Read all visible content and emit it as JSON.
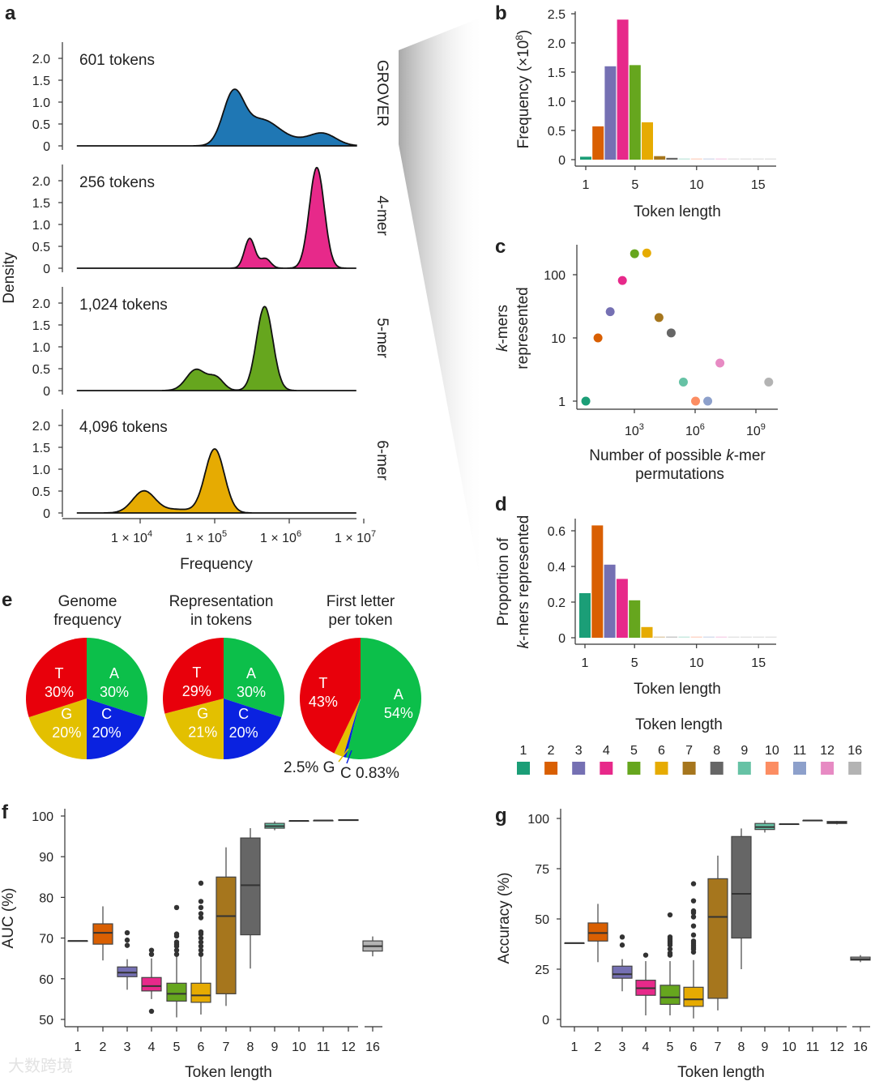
{
  "token_colors": {
    "1": "#1b9e77",
    "2": "#d95f02",
    "3": "#7570b3",
    "4": "#e7298a",
    "5": "#66a61e",
    "6": "#e6ab02",
    "7": "#a6761d",
    "8": "#666666",
    "9": "#66c2a5",
    "10": "#fc8d62",
    "11": "#8da0cb",
    "12": "#e78ac3",
    "16": "#b3b3b3"
  },
  "panel_letters": {
    "a": "a",
    "b": "b",
    "c": "c",
    "d": "d",
    "e": "e",
    "f": "f",
    "g": "g"
  },
  "watermark": "大数跨境",
  "chart_data": [
    {
      "id": "a",
      "type": "area",
      "xlabel": "Frequency",
      "ylabel": "Density",
      "xscale": "log10",
      "xticks": [
        {
          "value": 4,
          "base": "1 × 10",
          "exp": "4"
        },
        {
          "value": 5,
          "base": "1 × 10",
          "exp": "5"
        },
        {
          "value": 6,
          "base": "1 × 10",
          "exp": "6"
        },
        {
          "value": 7,
          "base": "1 × 10",
          "exp": "7"
        }
      ],
      "yticks": [
        "0",
        "0.5",
        "1.0",
        "1.5",
        "2.0"
      ],
      "ylim": [
        0,
        2.0
      ],
      "series": [
        {
          "name": "GROVER",
          "title": "601 tokens",
          "color": "#1f77b4",
          "components": [
            {
              "mu": 5.25,
              "sd": 0.14,
              "h": 1.15
            },
            {
              "mu": 5.62,
              "sd": 0.22,
              "h": 0.55
            },
            {
              "mu": 6.45,
              "sd": 0.18,
              "h": 0.27
            },
            {
              "mu": 6.0,
              "sd": 0.25,
              "h": 0.12
            }
          ]
        },
        {
          "name": "4-mer",
          "title": "256 tokens",
          "color": "#e7298a",
          "components": [
            {
              "mu": 6.37,
              "sd": 0.1,
              "h": 2.3
            },
            {
              "mu": 5.47,
              "sd": 0.07,
              "h": 0.68
            },
            {
              "mu": 5.68,
              "sd": 0.07,
              "h": 0.22
            }
          ]
        },
        {
          "name": "5-mer",
          "title": "1,024 tokens",
          "color": "#66a61e",
          "components": [
            {
              "mu": 5.67,
              "sd": 0.11,
              "h": 1.92
            },
            {
              "mu": 4.75,
              "sd": 0.13,
              "h": 0.48
            },
            {
              "mu": 5.02,
              "sd": 0.1,
              "h": 0.28
            }
          ]
        },
        {
          "name": "6-mer",
          "title": "4,096 tokens",
          "color": "#e6ab02",
          "components": [
            {
              "mu": 5.0,
              "sd": 0.13,
              "h": 1.46
            },
            {
              "mu": 4.05,
              "sd": 0.15,
              "h": 0.5
            },
            {
              "mu": 4.5,
              "sd": 0.2,
              "h": 0.08
            }
          ]
        }
      ]
    },
    {
      "id": "b",
      "type": "bar",
      "xlabel": "Token length",
      "ylabel": "Frequency (×10",
      "ylabel_exp": "8",
      "ylabel_end": ")",
      "categories": [
        1,
        2,
        3,
        4,
        5,
        6,
        7,
        8,
        9,
        10,
        11,
        12,
        13,
        14,
        15,
        16
      ],
      "values": [
        0.05,
        0.57,
        1.6,
        2.4,
        1.62,
        0.64,
        0.06,
        0.03,
        0.005,
        0.005,
        0.005,
        0.005,
        0.003,
        0.003,
        0.003,
        0.003
      ],
      "xticks": [
        "1",
        "5",
        "10",
        "15"
      ],
      "yticks": [
        "0",
        "0.5",
        "1.0",
        "1.5",
        "2.0",
        "2.5"
      ],
      "ylim": [
        0,
        2.5
      ]
    },
    {
      "id": "c",
      "type": "scatter",
      "xlabel": "Number of possible k-mer permutations",
      "xlabel_lines": [
        "Number of possible ",
        "k",
        "-mer",
        "permutations"
      ],
      "ylabel_lines": [
        "k",
        "-mers",
        "represented"
      ],
      "xscale": "log10",
      "yscale": "log10",
      "points": [
        {
          "k": 1,
          "x": 4,
          "y": 1
        },
        {
          "k": 2,
          "x": 16,
          "y": 10
        },
        {
          "k": 3,
          "x": 64,
          "y": 26
        },
        {
          "k": 4,
          "x": 256,
          "y": 81
        },
        {
          "k": 5,
          "x": 1024,
          "y": 215
        },
        {
          "k": 6,
          "x": 4096,
          "y": 220
        },
        {
          "k": 7,
          "x": 16384,
          "y": 21
        },
        {
          "k": 8,
          "x": 65536,
          "y": 12
        },
        {
          "k": 9,
          "x": 262144,
          "y": 2
        },
        {
          "k": 10,
          "x": 1048576,
          "y": 1
        },
        {
          "k": 11,
          "x": 4194304,
          "y": 1
        },
        {
          "k": 12,
          "x": 16777216,
          "y": 4
        },
        {
          "k": 16,
          "x": 4294967296,
          "y": 2
        }
      ],
      "xticks": [
        {
          "value": 3,
          "base": "10",
          "exp": "3"
        },
        {
          "value": 6,
          "base": "10",
          "exp": "6"
        },
        {
          "value": 9,
          "base": "10",
          "exp": "9"
        }
      ],
      "yticks": [
        "1",
        "10",
        "100"
      ]
    },
    {
      "id": "d",
      "type": "bar",
      "xlabel": "Token length",
      "ylabel_lines": [
        "Proportion of",
        "k",
        "-mers represented"
      ],
      "categories": [
        1,
        2,
        3,
        4,
        5,
        6,
        7,
        8,
        9,
        10,
        11,
        12,
        13,
        14,
        15,
        16
      ],
      "values": [
        0.25,
        0.63,
        0.41,
        0.33,
        0.21,
        0.06,
        0.005,
        0.002,
        0,
        0,
        0,
        0,
        0,
        0,
        0,
        0
      ],
      "xticks": [
        "1",
        "5",
        "10",
        "15"
      ],
      "yticks": [
        "0",
        "0.2",
        "0.4",
        "0.6"
      ],
      "ylim": [
        0,
        0.65
      ]
    },
    {
      "id": "legend",
      "title": "Token length",
      "items": [
        "1",
        "2",
        "3",
        "4",
        "5",
        "6",
        "7",
        "8",
        "9",
        "10",
        "11",
        "12",
        "16"
      ]
    },
    {
      "id": "e",
      "type": "pie",
      "pies": [
        {
          "title": [
            "Genome",
            "frequency"
          ],
          "slices": [
            {
              "label": "A",
              "pct": "30%",
              "value": 30,
              "color": "#0cbf4a"
            },
            {
              "label": "C",
              "pct": "20%",
              "value": 20,
              "color": "#0a22e0"
            },
            {
              "label": "G",
              "pct": "20%",
              "value": 20,
              "color": "#e3c000"
            },
            {
              "label": "T",
              "pct": "30%",
              "value": 30,
              "color": "#e8000b"
            }
          ]
        },
        {
          "title": [
            "Representation",
            "in tokens"
          ],
          "slices": [
            {
              "label": "A",
              "pct": "30%",
              "value": 30,
              "color": "#0cbf4a"
            },
            {
              "label": "C",
              "pct": "20%",
              "value": 20,
              "color": "#0a22e0"
            },
            {
              "label": "G",
              "pct": "21%",
              "value": 21,
              "color": "#e3c000"
            },
            {
              "label": "T",
              "pct": "29%",
              "value": 29,
              "color": "#e8000b"
            }
          ]
        },
        {
          "title": [
            "First letter",
            "per token"
          ],
          "slices": [
            {
              "label": "A",
              "pct": "54%",
              "value": 54,
              "color": "#0cbf4a"
            },
            {
              "label": "C",
              "pct": "0.83%",
              "value": 0.83,
              "color": "#0a22e0"
            },
            {
              "label": "G",
              "pct": "2.5%",
              "value": 2.5,
              "color": "#e3c000"
            },
            {
              "label": "T",
              "pct": "43%",
              "value": 43,
              "color": "#e8000b"
            }
          ],
          "outside_labels": {
            "g": "2.5% G",
            "c": "C 0.83%"
          }
        }
      ]
    },
    {
      "id": "f",
      "type": "box",
      "xlabel": "Token length",
      "ylabel": "AUC (%)",
      "yticks": [
        50,
        60,
        70,
        80,
        90,
        100
      ],
      "ylim": [
        50,
        100
      ],
      "boxes": [
        {
          "k": "1",
          "stats": [
            69.3,
            69.3,
            69.3,
            69.3,
            69.3
          ],
          "out": []
        },
        {
          "k": "2",
          "stats": [
            64.5,
            68.5,
            71.3,
            73.5,
            77.8
          ],
          "out": []
        },
        {
          "k": "3",
          "stats": [
            57.3,
            60.5,
            61.5,
            62.9,
            64.8
          ],
          "out": [
            68.2,
            69.5,
            71.3
          ]
        },
        {
          "k": "4",
          "stats": [
            55,
            57,
            58.2,
            60.3,
            65
          ],
          "out": [
            52,
            66,
            67
          ]
        },
        {
          "k": "5",
          "stats": [
            50.5,
            54.5,
            56.3,
            58.9,
            65.5
          ],
          "out": [
            66,
            67,
            68,
            68.5,
            69,
            70.5,
            71,
            77.5
          ]
        },
        {
          "k": "6",
          "stats": [
            51.2,
            54.2,
            55.9,
            58.9,
            65.5
          ],
          "out": [
            66,
            67,
            68,
            69,
            70,
            71,
            71.5,
            75,
            76,
            77.5,
            79,
            83.5
          ]
        },
        {
          "k": "7",
          "stats": [
            53.3,
            56.3,
            75.4,
            85,
            92.3
          ],
          "out": []
        },
        {
          "k": "8",
          "stats": [
            62.5,
            70.8,
            83,
            94.6,
            97
          ],
          "out": []
        },
        {
          "k": "9",
          "stats": [
            96.5,
            97,
            97.5,
            98.2,
            98.7
          ],
          "out": []
        },
        {
          "k": "10",
          "stats": [
            98.8,
            98.8,
            98.8,
            98.8,
            98.8
          ],
          "out": []
        },
        {
          "k": "11",
          "stats": [
            98.9,
            98.9,
            98.9,
            98.9,
            98.9
          ],
          "out": []
        },
        {
          "k": "12",
          "stats": [
            98.9,
            98.9,
            99,
            99.1,
            99.2
          ],
          "out": []
        },
        {
          "k": "16",
          "stats": [
            65.5,
            66.8,
            68,
            69.3,
            70.4
          ],
          "out": []
        }
      ]
    },
    {
      "id": "g",
      "type": "box",
      "xlabel": "Token length",
      "ylabel": "Accuracy (%)",
      "yticks": [
        0,
        25,
        50,
        75,
        100
      ],
      "ylim": [
        0,
        100
      ],
      "boxes": [
        {
          "k": "1",
          "stats": [
            38,
            38,
            38,
            38,
            38
          ],
          "out": []
        },
        {
          "k": "2",
          "stats": [
            28.5,
            39,
            43,
            48,
            57.5
          ],
          "out": []
        },
        {
          "k": "3",
          "stats": [
            14,
            20.5,
            22.5,
            26.5,
            30
          ],
          "out": [
            37,
            41
          ]
        },
        {
          "k": "4",
          "stats": [
            2,
            12,
            15.5,
            19.5,
            29
          ],
          "out": [
            32
          ]
        },
        {
          "k": "5",
          "stats": [
            2,
            7.5,
            11,
            17,
            29
          ],
          "out": [
            32,
            33,
            35,
            37,
            38,
            39,
            40,
            41,
            52
          ]
        },
        {
          "k": "6",
          "stats": [
            0.5,
            6.5,
            10,
            16,
            29.5
          ],
          "out": [
            33.5,
            35,
            36,
            37,
            38,
            39,
            42,
            46.5,
            51,
            53,
            54,
            59,
            67.5
          ]
        },
        {
          "k": "7",
          "stats": [
            4.5,
            10.5,
            51,
            70,
            81.5
          ],
          "out": []
        },
        {
          "k": "8",
          "stats": [
            25,
            40.5,
            62.5,
            91,
            95
          ],
          "out": []
        },
        {
          "k": "9",
          "stats": [
            93,
            94.5,
            95.7,
            97.5,
            99
          ],
          "out": []
        },
        {
          "k": "10",
          "stats": [
            97.2,
            97.2,
            97.2,
            97.2,
            97.2
          ],
          "out": []
        },
        {
          "k": "11",
          "stats": [
            99,
            99,
            99,
            99,
            99
          ],
          "out": []
        },
        {
          "k": "12",
          "stats": [
            97,
            97.5,
            98,
            98.5,
            98.8
          ],
          "out": []
        },
        {
          "k": "16",
          "stats": [
            28.5,
            29.5,
            30,
            31,
            32
          ],
          "out": []
        }
      ]
    }
  ]
}
